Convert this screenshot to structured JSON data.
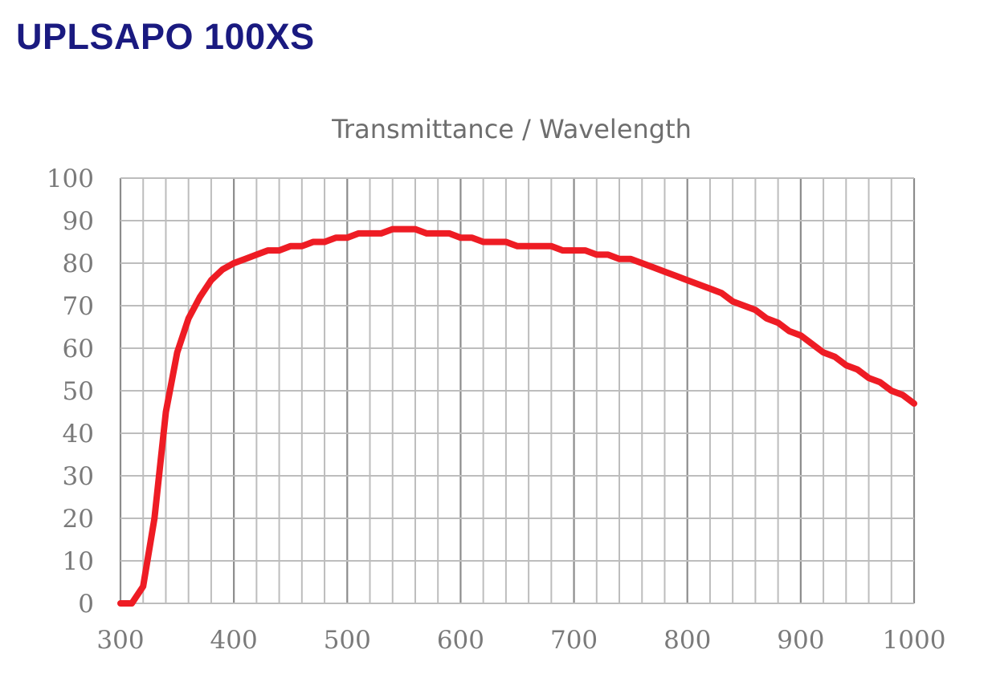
{
  "header": {
    "title": "UPLSAPO 100XS"
  },
  "colors": {
    "title": "#1a1a80",
    "series": "#ee1c24",
    "grid": "#bdbdbd",
    "major_grid": "#8c8c8c",
    "text": "#7a7a7a"
  },
  "chart_data": {
    "type": "line",
    "title": "Transmittance / Wavelength",
    "xlabel": "",
    "ylabel": "",
    "xlim": [
      300,
      1000
    ],
    "ylim": [
      0,
      100
    ],
    "x_ticks": [
      300,
      400,
      500,
      600,
      700,
      800,
      900,
      1000
    ],
    "y_ticks": [
      0,
      10,
      20,
      30,
      40,
      50,
      60,
      70,
      80,
      90,
      100
    ],
    "x_minor_step": 20,
    "y_minor_step": 10,
    "grid": true,
    "series": [
      {
        "x": [
          300,
          310,
          320,
          330,
          340,
          350,
          360,
          370,
          380,
          390,
          400,
          410,
          420,
          430,
          440,
          450,
          460,
          470,
          480,
          490,
          500,
          510,
          520,
          530,
          540,
          550,
          560,
          570,
          580,
          590,
          600,
          610,
          620,
          630,
          640,
          650,
          660,
          670,
          680,
          690,
          700,
          710,
          720,
          730,
          740,
          750,
          760,
          770,
          780,
          790,
          800,
          810,
          820,
          830,
          840,
          850,
          860,
          870,
          880,
          890,
          900,
          910,
          920,
          930,
          940,
          950,
          960,
          970,
          980,
          990,
          1000
        ],
        "y": [
          0,
          0,
          4,
          20,
          45,
          59,
          67,
          72,
          76,
          78.5,
          80,
          81,
          82,
          83,
          83,
          84,
          84,
          85,
          85,
          86,
          86,
          87,
          87,
          87,
          88,
          88,
          88,
          87,
          87,
          87,
          86,
          86,
          85,
          85,
          85,
          84,
          84,
          84,
          84,
          83,
          83,
          83,
          82,
          82,
          81,
          81,
          80,
          79,
          78,
          77,
          76,
          75,
          74,
          73,
          71,
          70,
          69,
          67,
          66,
          64,
          63,
          61,
          59,
          58,
          56,
          55,
          53,
          52,
          50,
          49,
          47
        ]
      }
    ]
  }
}
